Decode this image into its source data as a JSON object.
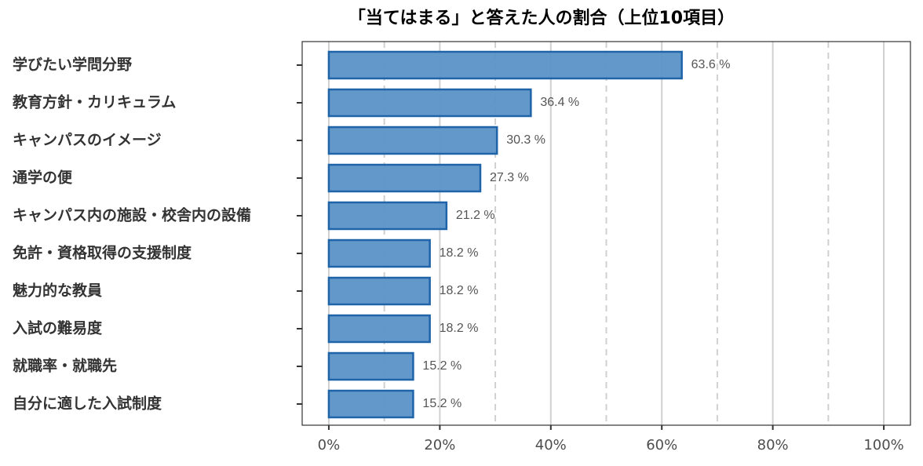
{
  "chart_data": {
    "type": "bar",
    "orientation": "horizontal",
    "title": "「当てはまる」と答えた人の割合（上位10項目）",
    "categories": [
      "学びたい学問分野",
      "教育方針・カリキュラム",
      "キャンパスのイメージ",
      "通学の便",
      "キャンパス内の施設・校舎内の設備",
      "免許・資格取得の支援制度",
      "魅力的な教員",
      "入試の難易度",
      "就職率・就職先",
      "自分に適した入試制度"
    ],
    "values": [
      63.6,
      36.4,
      30.3,
      27.3,
      21.2,
      18.2,
      18.2,
      18.2,
      15.2,
      15.2
    ],
    "value_labels": [
      "63.6 %",
      "36.4 %",
      "30.3 %",
      "27.3 %",
      "21.2 %",
      "18.2 %",
      "18.2 %",
      "18.2 %",
      "15.2 %",
      "15.2 %"
    ],
    "color": "#5b93c7",
    "edge_color": "#1f63a8",
    "xlim": [
      -4.8,
      104.8
    ],
    "xticks": [
      {
        "value": 0,
        "label": "0%"
      },
      {
        "value": 20,
        "label": "20%"
      },
      {
        "value": 40,
        "label": "40%"
      },
      {
        "value": 60,
        "label": "60%"
      },
      {
        "value": 80,
        "label": "80%"
      },
      {
        "value": 100,
        "label": "100%"
      }
    ],
    "minor_xticks": [
      10,
      30,
      50,
      70,
      90
    ],
    "grid": true
  }
}
